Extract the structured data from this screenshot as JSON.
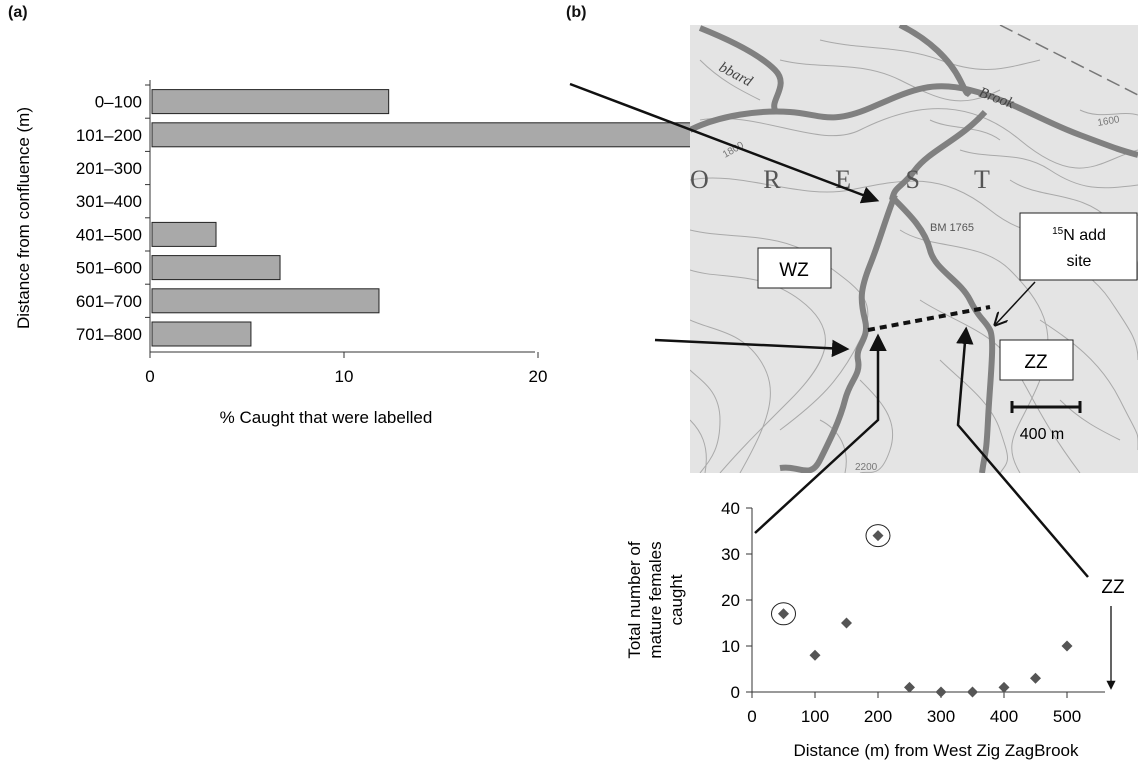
{
  "panel_a": {
    "label": "(a)"
  },
  "panel_b": {
    "label": "(b)"
  },
  "chart_data": [
    {
      "type": "bar",
      "orientation": "horizontal",
      "categories": [
        "0–100",
        "101–200",
        "201–300",
        "301–400",
        "401–500",
        "501–600",
        "601–700",
        "701–800"
      ],
      "values": [
        12.2,
        30.8,
        0,
        0,
        3.3,
        6.6,
        11.7,
        5.1
      ],
      "xlabel": "% Caught that were labelled",
      "ylabel": "Distance from confluence (m)",
      "xlim": [
        0,
        40
      ],
      "xticks": [
        0,
        10,
        20,
        30
      ],
      "bar_color": "#a9a9a9",
      "grid": false
    },
    {
      "type": "scatter",
      "x": [
        50,
        100,
        150,
        200,
        250,
        300,
        350,
        400,
        450,
        500
      ],
      "y": [
        17,
        8,
        15,
        34,
        1,
        0,
        0,
        1,
        3,
        10
      ],
      "circled_x": [
        50,
        200
      ],
      "xlabel": "Distance (m) from West Zig ZagBrook",
      "ylabel_lines": [
        "Total number of",
        "mature females",
        "caught"
      ],
      "xlim": [
        0,
        560
      ],
      "ylim": [
        0,
        40
      ],
      "xticks": [
        0,
        100,
        200,
        300,
        400,
        500
      ],
      "yticks": [
        0,
        10,
        20,
        30,
        40
      ],
      "marker_color": "#555555",
      "grid": false
    }
  ],
  "map": {
    "wz_label": "WZ",
    "zz_label": "ZZ",
    "add_site_line1": "N add",
    "add_site_super": "15",
    "add_site_line2": "site",
    "scale_label": "400 m",
    "bm_label": "BM 1765",
    "brook_label": "Brook",
    "hubbard_label": "bbard",
    "forest_label": "O R E S T",
    "contour_1600": "1600",
    "contour_1800": "1800",
    "contour_2200": "2200"
  },
  "zz_arrow_label": "ZZ"
}
